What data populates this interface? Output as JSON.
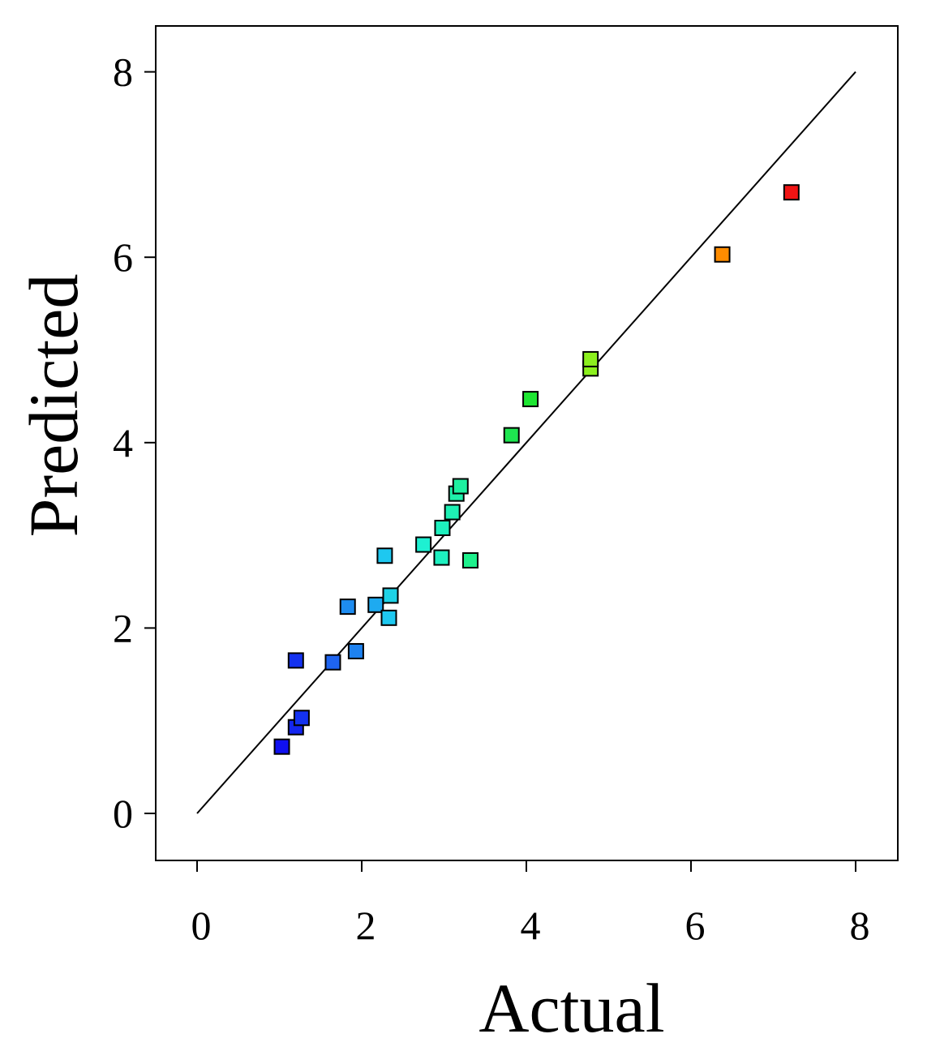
{
  "chart_data": {
    "type": "scatter",
    "xlabel": "Actual",
    "ylabel": "Predicted",
    "xlim": [
      -0.5,
      8.5
    ],
    "ylim": [
      -0.5,
      8.5
    ],
    "xticks": [
      "0",
      "2",
      "4",
      "6",
      "8"
    ],
    "yticks": [
      "0",
      "2",
      "4",
      "6",
      "8"
    ],
    "grid": false,
    "legend": "none",
    "reference_line": {
      "from": [
        0,
        0
      ],
      "to": [
        8,
        8
      ],
      "color": "#000000"
    },
    "marker": "square",
    "colors": {
      "low": "#0a14f0",
      "high": "#f01414",
      "scale": "jet"
    },
    "points": [
      {
        "x": 1.03,
        "y": 0.72,
        "color": "#1010f0"
      },
      {
        "x": 1.2,
        "y": 0.93,
        "color": "#1426f0"
      },
      {
        "x": 1.27,
        "y": 1.03,
        "color": "#1432f0"
      },
      {
        "x": 1.2,
        "y": 1.65,
        "color": "#1432f0"
      },
      {
        "x": 1.65,
        "y": 1.63,
        "color": "#1e64f0"
      },
      {
        "x": 1.93,
        "y": 1.75,
        "color": "#1e82f0"
      },
      {
        "x": 1.83,
        "y": 2.23,
        "color": "#1e8cf0"
      },
      {
        "x": 2.17,
        "y": 2.25,
        "color": "#1eaaf0"
      },
      {
        "x": 2.33,
        "y": 2.11,
        "color": "#1ec8f0"
      },
      {
        "x": 2.35,
        "y": 2.35,
        "color": "#1ed2e6"
      },
      {
        "x": 2.28,
        "y": 2.78,
        "color": "#1ec8f0"
      },
      {
        "x": 2.75,
        "y": 2.9,
        "color": "#1ef0d2"
      },
      {
        "x": 2.97,
        "y": 2.76,
        "color": "#1ef0c0"
      },
      {
        "x": 2.98,
        "y": 3.08,
        "color": "#1ef0be"
      },
      {
        "x": 3.1,
        "y": 3.25,
        "color": "#1ef0b4"
      },
      {
        "x": 3.15,
        "y": 3.45,
        "color": "#1ef0aa"
      },
      {
        "x": 3.2,
        "y": 3.53,
        "color": "#1ef0a0"
      },
      {
        "x": 3.32,
        "y": 2.73,
        "color": "#1ef08c"
      },
      {
        "x": 3.82,
        "y": 4.08,
        "color": "#1ee650"
      },
      {
        "x": 4.05,
        "y": 4.47,
        "color": "#1ee632"
      },
      {
        "x": 4.78,
        "y": 4.8,
        "color": "#8cf01e"
      },
      {
        "x": 4.78,
        "y": 4.9,
        "color": "#8cf01e"
      },
      {
        "x": 6.38,
        "y": 6.03,
        "color": "#ff8c00"
      },
      {
        "x": 7.22,
        "y": 6.7,
        "color": "#f01414"
      }
    ]
  }
}
